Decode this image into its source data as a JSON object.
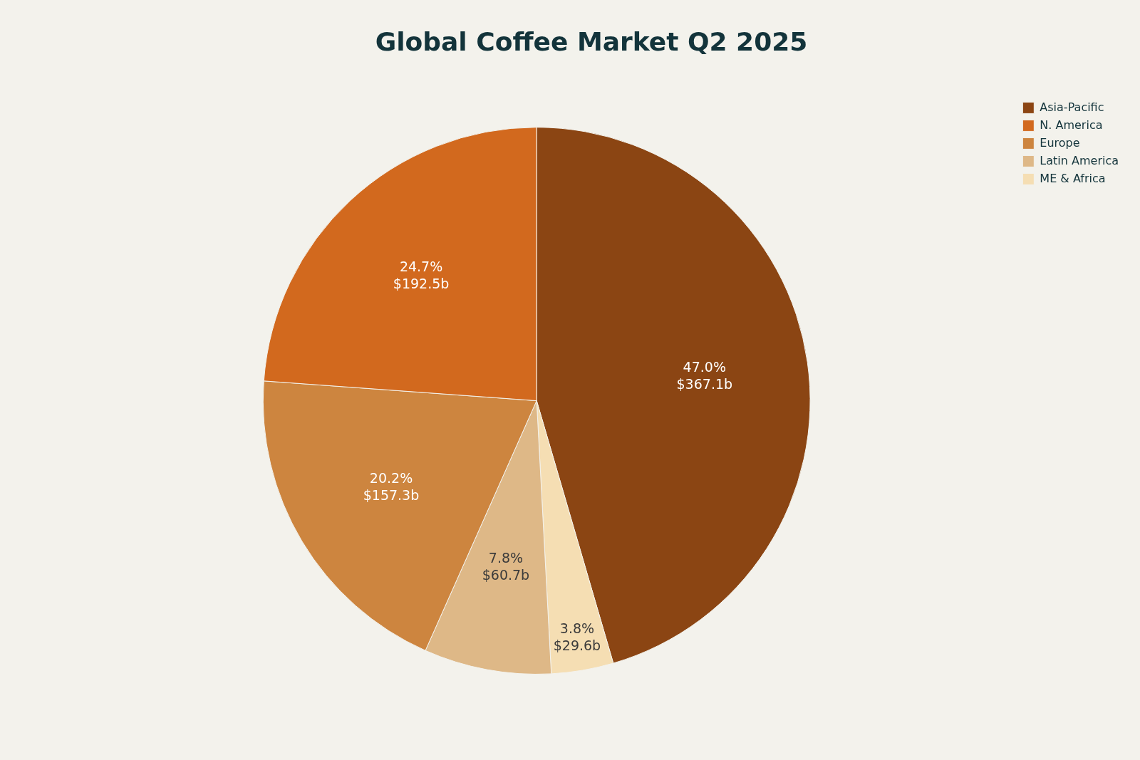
{
  "chart_data": {
    "type": "pie",
    "title": "Global Coffee Market Q2 2025",
    "categories": [
      "Asia-Pacific",
      "N. America",
      "Europe",
      "Latin America",
      "ME & Africa"
    ],
    "values": [
      367.1,
      192.5,
      157.3,
      60.7,
      29.6
    ],
    "colors": [
      "#8b4513",
      "#d2691e",
      "#cd853f",
      "#deb887",
      "#f5deb3"
    ],
    "value_labels": [
      "$367.1b",
      "$192.5b",
      "$157.3b",
      "$60.7b",
      "$29.6b"
    ],
    "annotations": [
      {
        "text": "47.0%",
        "x": "Asia-Pacific"
      },
      {
        "text": "24.7%",
        "x": "N. America"
      },
      {
        "text": "20.2%",
        "x": "Europe"
      },
      {
        "text": "7.8%",
        "x": "Latin America"
      },
      {
        "text": "3.8%",
        "x": "ME & Africa"
      }
    ],
    "legend": "top right"
  }
}
